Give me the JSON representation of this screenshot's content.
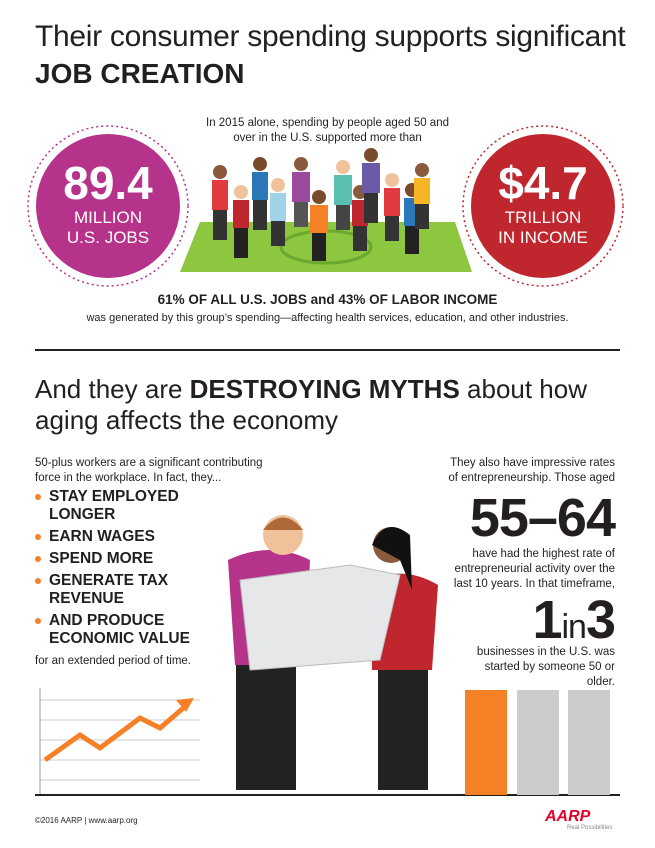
{
  "header": {
    "title_line1": "Their consumer spending supports significant",
    "title_line2": "JOB CREATION"
  },
  "intro": "In 2015 alone, spending by people aged 50 and over in the U.S. supported more than",
  "stats": [
    {
      "value": "89.4",
      "label_line1": "MILLION",
      "label_line2": "U.S. JOBS"
    },
    {
      "value": "$4.7",
      "label_line1": "TRILLION",
      "label_line2": "IN INCOME"
    }
  ],
  "summary": {
    "bold": "61% OF ALL U.S. JOBS and 43% OF LABOR INCOME",
    "text": "was generated by this group’s spending—affecting health services, education, and other industries."
  },
  "section2": {
    "heading_start": "And they are ",
    "heading_bold": "DESTROYING MYTHS",
    "heading_end": " about how aging affects the economy"
  },
  "left": {
    "intro": "50-plus workers are a significant contributing force in the workplace. In fact, they...",
    "bullets": [
      "STAY EMPLOYED LONGER",
      "EARN WAGES",
      "SPEND MORE",
      "GENERATE TAX REVENUE",
      "AND PRODUCE ECONOMIC VALUE"
    ],
    "outro": "for an extended period of time."
  },
  "right": {
    "intro": "They also have impressive rates of entrepreneurship. Those aged",
    "age_range": "55–64",
    "middle": "have had the highest rate of entrepreneurial activity over the last 10 years. In that timeframe,",
    "ratio_a": "1",
    "ratio_in": "in",
    "ratio_b": "3",
    "outro": "businesses in the U.S. was started by someone 50 or older."
  },
  "footer": {
    "copyright": "©2016 AARP | www.aarp.org",
    "logo": "AARP",
    "tagline": "Real Possibilities"
  }
}
